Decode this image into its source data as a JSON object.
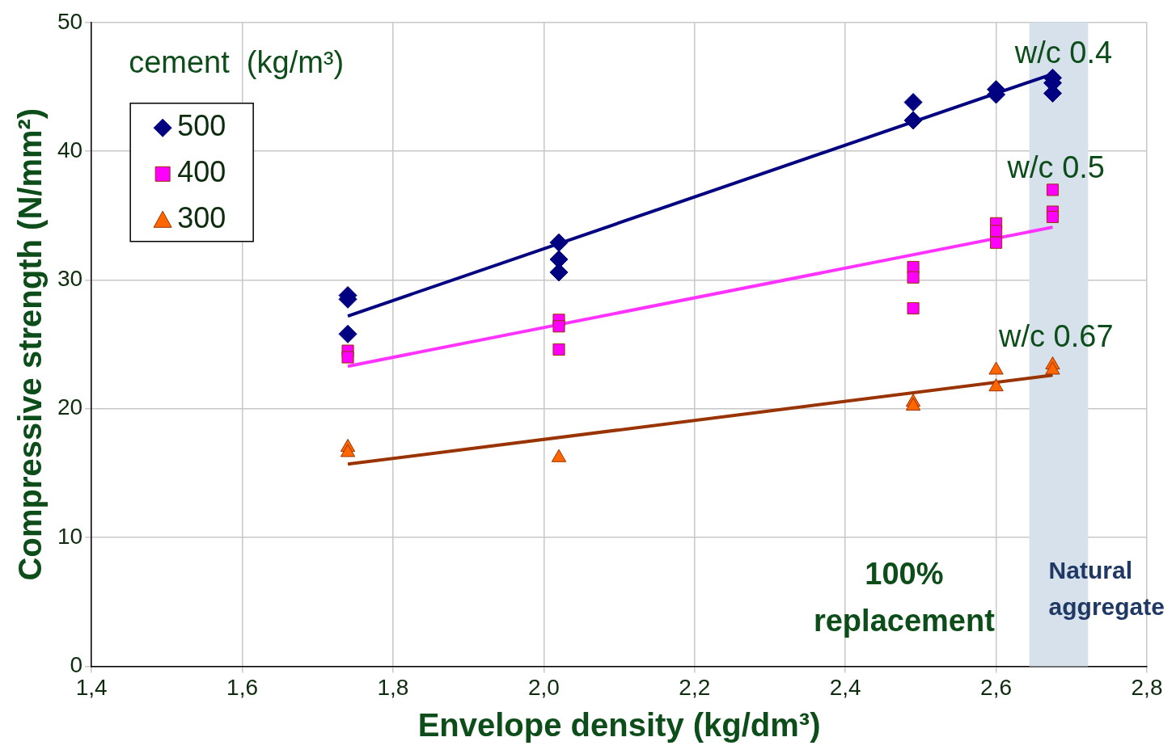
{
  "chart_data": {
    "type": "scatter",
    "xlabel": "Envelope density (kg/dm³)",
    "ylabel": "Compressive strength (N/mm²)",
    "legend_title": "cement  (kg/m³)",
    "legend": "top left",
    "grid": true,
    "xlim": [
      1.4,
      2.8
    ],
    "xticks": [
      {
        "value": 1.4,
        "label": "1,4"
      },
      {
        "value": 1.6,
        "label": "1,6"
      },
      {
        "value": 1.8,
        "label": "1,8"
      },
      {
        "value": 2.0,
        "label": "2,0"
      },
      {
        "value": 2.2,
        "label": "2,2"
      },
      {
        "value": 2.4,
        "label": "2,4"
      },
      {
        "value": 2.6,
        "label": "2,6"
      },
      {
        "value": 2.8,
        "label": "2,8"
      }
    ],
    "ylim": [
      0,
      50
    ],
    "yticks": [
      0,
      10,
      20,
      30,
      40,
      50
    ],
    "series": [
      {
        "name": "500",
        "color": "#000080",
        "marker": "diamond",
        "x": [
          1.74,
          1.74,
          1.74,
          2.02,
          2.02,
          2.02,
          2.49,
          2.49,
          2.6,
          2.6,
          2.675,
          2.675,
          2.675
        ],
        "values": [
          28.8,
          28.5,
          25.8,
          32.9,
          31.6,
          30.6,
          43.8,
          42.4,
          44.8,
          44.4,
          45.7,
          45.3,
          44.5
        ]
      },
      {
        "name": "400",
        "color": "#ff00ff",
        "marker": "square",
        "x": [
          1.74,
          1.74,
          2.02,
          2.02,
          2.02,
          2.49,
          2.49,
          2.49,
          2.6,
          2.6,
          2.6,
          2.675,
          2.675,
          2.675
        ],
        "values": [
          24.5,
          24.0,
          26.9,
          26.4,
          24.6,
          31.0,
          30.2,
          27.8,
          34.4,
          33.8,
          32.9,
          37.0,
          35.3,
          34.9
        ]
      },
      {
        "name": "300",
        "color": "#ff6600",
        "marker": "triangle",
        "x": [
          1.74,
          1.74,
          2.02,
          2.49,
          2.49,
          2.6,
          2.6,
          2.675,
          2.675
        ],
        "values": [
          17.0,
          16.6,
          16.2,
          20.5,
          20.2,
          23.0,
          21.7,
          23.4,
          23.0
        ]
      },
      {
        "type": "line",
        "color": "#000080",
        "x": [
          1.74,
          2.675
        ],
        "values": [
          27.2,
          46.0
        ]
      },
      {
        "type": "line",
        "color": "#ff33ff",
        "x": [
          1.74,
          2.675
        ],
        "values": [
          23.3,
          34.1
        ]
      },
      {
        "type": "line",
        "color": "#993300",
        "x": [
          1.74,
          2.675
        ],
        "values": [
          15.7,
          22.6
        ]
      }
    ],
    "bands": [
      {
        "axis": "x",
        "from": 2.644,
        "to": 2.722,
        "label": "Natural aggregate",
        "color": "#d6e1ec"
      }
    ],
    "annotations": [
      "w/c 0.4",
      "w/c 0.5",
      "w/c 0.67",
      "100% replacement"
    ]
  }
}
